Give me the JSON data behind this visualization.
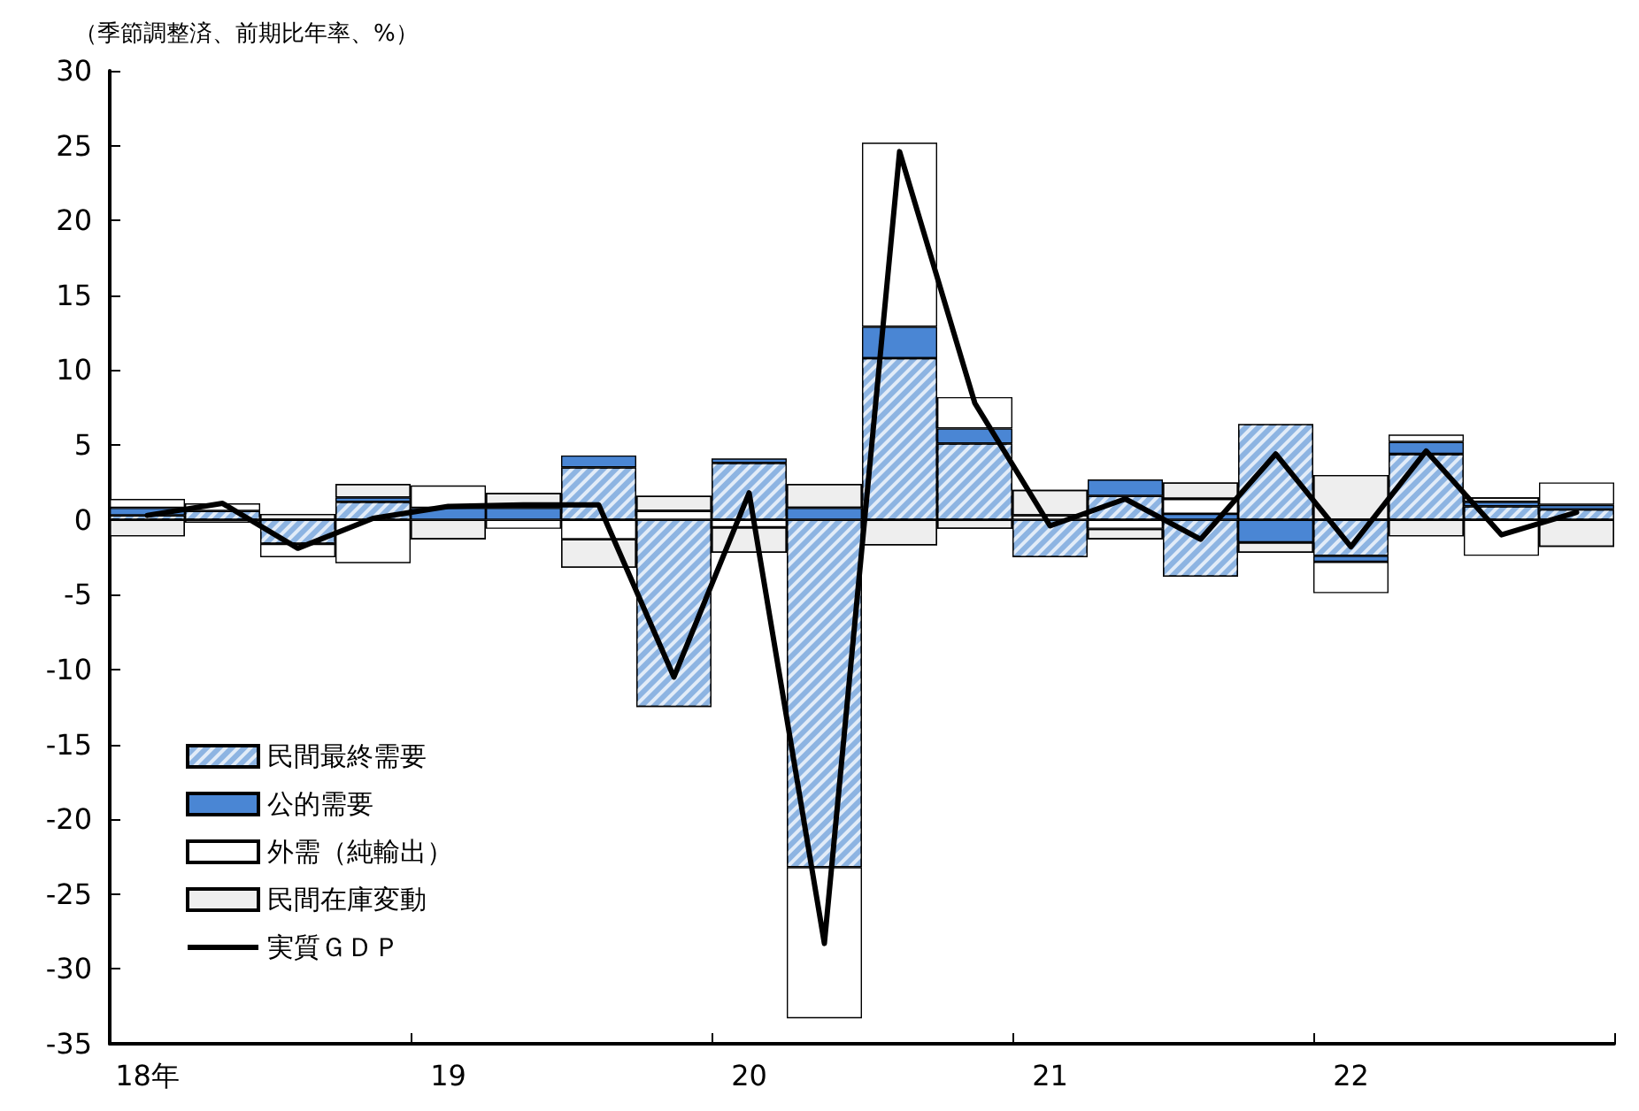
{
  "chart_data": {
    "type": "bar",
    "stacked": true,
    "ylabel": "（季節調整済、前期比年率、%）",
    "categories": [
      "18年",
      null,
      null,
      null,
      "19",
      null,
      null,
      null,
      "20",
      null,
      null,
      null,
      "21",
      null,
      null,
      null,
      "22",
      null,
      null,
      null
    ],
    "series": [
      {
        "name": "民間最終需要",
        "color": "#8db4e2",
        "values": [
          0.3,
          0.6,
          -1.6,
          1.2,
          null,
          null,
          3.5,
          -12.5,
          3.8,
          -23.2,
          10.8,
          5.1,
          -2.5,
          1.6,
          -3.8,
          6.4,
          -2.4,
          4.4,
          0.9,
          0.7
        ]
      },
      {
        "name": "公的需要",
        "color": "#4a86d4",
        "values": [
          0.5,
          null,
          null,
          0.3,
          0.8,
          0.8,
          0.8,
          null,
          0.3,
          0.8,
          2.1,
          1.0,
          null,
          1.1,
          0.4,
          -1.5,
          -0.4,
          0.8,
          0.3,
          0.3
        ]
      },
      {
        "name": "外需（純輸出）",
        "color": "#ffffff",
        "values": [
          0.6,
          0.5,
          -0.9,
          -2.9,
          1.5,
          -0.6,
          -1.3,
          0.6,
          -0.5,
          -10.1,
          12.3,
          2.1,
          0.3,
          -0.6,
          1.0,
          null,
          -2.1,
          0.5,
          -2.4,
          1.5
        ]
      },
      {
        "name": "民間在庫変動",
        "color": "#eeeeee",
        "values": [
          -1.1,
          -0.2,
          0.4,
          0.9,
          -1.3,
          1.0,
          -1.9,
          1.0,
          -1.7,
          1.6,
          -1.7,
          -0.6,
          1.7,
          -0.7,
          1.1,
          -0.7,
          3.0,
          -1.1,
          0.3,
          -1.8
        ]
      },
      {
        "name": "実質ＧＤＰ",
        "type": "line",
        "color": "#000000",
        "values": [
          0.3,
          1.1,
          -1.9,
          0.1,
          0.9,
          1.0,
          1.0,
          -10.5,
          1.8,
          -28.3,
          24.6,
          7.8,
          -0.4,
          1.4,
          -1.3,
          4.4,
          -1.8,
          4.6,
          -1.0,
          0.5
        ]
      }
    ],
    "ylim": [
      -35,
      30
    ],
    "yticks": [
      -35,
      -30,
      -25,
      -20,
      -15,
      -10,
      -5,
      0,
      5,
      10,
      15,
      20,
      25,
      30
    ],
    "legend": "bottom left",
    "marker": "none",
    "line_style": "solid"
  }
}
